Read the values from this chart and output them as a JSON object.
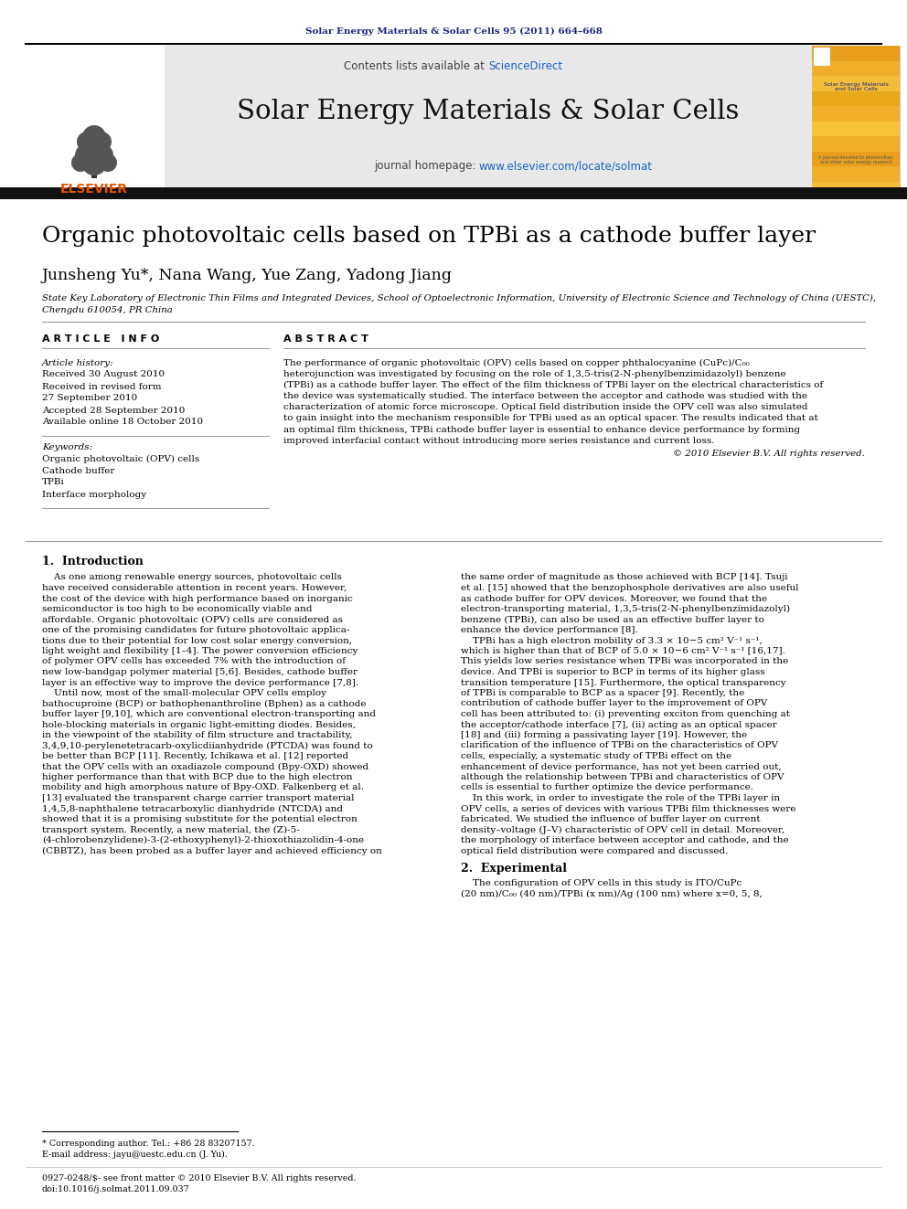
{
  "page_title": "Solar Energy Materials & Solar Cells 95 (2011) 664–668",
  "journal_name": "Solar Energy Materials & Solar Cells",
  "contents_line": "Contents lists available at ",
  "sciencedirect_text": "ScienceDirect",
  "homepage_prefix": "journal homepage: ",
  "homepage_url": "www.elsevier.com/locate/solmat",
  "paper_title": "Organic photovoltaic cells based on TPBi as a cathode buffer layer",
  "authors": "Junsheng Yu*, Nana Wang, Yue Zang, Yadong Jiang",
  "affiliation1": "State Key Laboratory of Electronic Thin Films and Integrated Devices, School of Optoelectronic Information, University of Electronic Science and Technology of China (UESTC),",
  "affiliation2": "Chengdu 610054, PR China",
  "article_info_title": "A R T I C L E   I N F O",
  "abstract_title": "A B S T R A C T",
  "article_history_label": "Article history:",
  "received1": "Received 30 August 2010",
  "revised_label": "Received in revised form",
  "revised_date": "27 September 2010",
  "accepted": "Accepted 28 September 2010",
  "available": "Available online 18 October 2010",
  "keywords_label": "Keywords:",
  "keyword1": "Organic photovoltaic (OPV) cells",
  "keyword2": "Cathode buffer",
  "keyword3": "TPBi",
  "keyword4": "Interface morphology",
  "copyright": "© 2010 Elsevier B.V. All rights reserved.",
  "section1_title": "1.  Introduction",
  "intro_left_lines": [
    "    As one among renewable energy sources, photovoltaic cells",
    "have received considerable attention in recent years. However,",
    "the cost of the device with high performance based on inorganic",
    "semiconductor is too high to be economically viable and",
    "affordable. Organic photovoltaic (OPV) cells are considered as",
    "one of the promising candidates for future photovoltaic applica-",
    "tions due to their potential for low cost solar energy conversion,",
    "light weight and flexibility [1–4]. The power conversion efficiency",
    "of polymer OPV cells has exceeded 7% with the introduction of",
    "new low-bandgap polymer material [5,6]. Besides, cathode buffer",
    "layer is an effective way to improve the device performance [7,8].",
    "    Until now, most of the small-molecular OPV cells employ",
    "bathocuproine (BCP) or bathophenanthroline (Bphen) as a cathode",
    "buffer layer [9,10], which are conventional electron-transporting and",
    "hole-blocking materials in organic light-emitting diodes. Besides,",
    "in the viewpoint of the stability of film structure and tractability,",
    "3,4,9,10-perylenetetracarb-oxylicdiianhydride (PTCDA) was found to",
    "be better than BCP [11]. Recently, Ichikawa et al. [12] reported",
    "that the OPV cells with an oxadiazole compound (Bpy-OXD) showed",
    "higher performance than that with BCP due to the high electron",
    "mobility and high amorphous nature of Bpy-OXD. Falkenberg et al.",
    "[13] evaluated the transparent charge carrier transport material",
    "1,4,5,8-naphthalene tetracarboxylic dianhydride (NTCDA) and",
    "showed that it is a promising substitute for the potential electron",
    "transport system. Recently, a new material, the (Z)-5-",
    "(4-chlorobenzylidene)-3-(2-ethoxyphenyl)-2-thioxothiazolidin-4-one",
    "(CBBTZ), has been probed as a buffer layer and achieved efficiency on"
  ],
  "intro_right_lines": [
    "the same order of magnitude as those achieved with BCP [14]. Tsuji",
    "et al. [15] showed that the benzophosphole derivatives are also useful",
    "as cathode buffer for OPV devices. Moreover, we found that the",
    "electron-transporting material, 1,3,5-tris(2-N-phenylbenzimidazolyl)",
    "benzene (TPBi), can also be used as an effective buffer layer to",
    "enhance the device performance [8].",
    "    TPBi has a high electron mobility of 3.3 × 10−5 cm² V⁻¹ s⁻¹,",
    "which is higher than that of BCP of 5.0 × 10−6 cm² V⁻¹ s⁻¹ [16,17].",
    "This yields low series resistance when TPBi was incorporated in the",
    "device. And TPBi is superior to BCP in terms of its higher glass",
    "transition temperature [15]. Furthermore, the optical transparency",
    "of TPBi is comparable to BCP as a spacer [9]. Recently, the",
    "contribution of cathode buffer layer to the improvement of OPV",
    "cell has been attributed to: (i) preventing exciton from quenching at",
    "the acceptor/cathode interface [7], (ii) acting as an optical spacer",
    "[18] and (iii) forming a passivating layer [19]. However, the",
    "clarification of the influence of TPBi on the characteristics of OPV",
    "cells, especially, a systematic study of TPBi effect on the",
    "enhancement of device performance, has not yet been carried out,",
    "although the relationship between TPBi and characteristics of OPV",
    "cells is essential to further optimize the device performance.",
    "    In this work, in order to investigate the role of the TPBi layer in",
    "OPV cells, a series of devices with various TPBi film thicknesses were",
    "fabricated. We studied the influence of buffer layer on current",
    "density–voltage (J–V) characteristic of OPV cell in detail. Moreover,",
    "the morphology of interface between acceptor and cathode, and the",
    "optical field distribution were compared and discussed."
  ],
  "section2_title": "2.  Experimental",
  "exp_line1": "    The configuration of OPV cells in this study is ITO/CuPc",
  "exp_line2": "(20 nm)/C₀₀ (40 nm)/TPBi (x nm)/Ag (100 nm) where x=0, 5, 8,",
  "footnote_star": "* Corresponding author. Tel.: +86 28 83207157.",
  "footnote_email": "E-mail address: jayu@uestc.edu.cn (J. Yu).",
  "footer_left": "0927-0248/$- see front matter © 2010 Elsevier B.V. All rights reserved.",
  "footer_doi": "doi:10.1016/j.solmat.2011.09.037",
  "header_color": "#1a237e",
  "link_color": "#1565c0",
  "elsevier_orange": "#e65100",
  "header_bg": "#e8e8e8",
  "abstract_lines": [
    "The performance of organic photovoltaic (OPV) cells based on copper phthalocyanine (CuPc)/C₀₀",
    "heterojunction was investigated by focusing on the role of 1,3,5-tris(2-N-phenylbenzimidazolyl) benzene",
    "(TPBi) as a cathode buffer layer. The effect of the film thickness of TPBi layer on the electrical characteristics of",
    "the device was systematically studied. The interface between the acceptor and cathode was studied with the",
    "characterization of atomic force microscope. Optical field distribution inside the OPV cell was also simulated",
    "to gain insight into the mechanism responsible for TPBi used as an optical spacer. The results indicated that at",
    "an optimal film thickness, TPBi cathode buffer layer is essential to enhance device performance by forming",
    "improved interfacial contact without introducing more series resistance and current loss."
  ]
}
